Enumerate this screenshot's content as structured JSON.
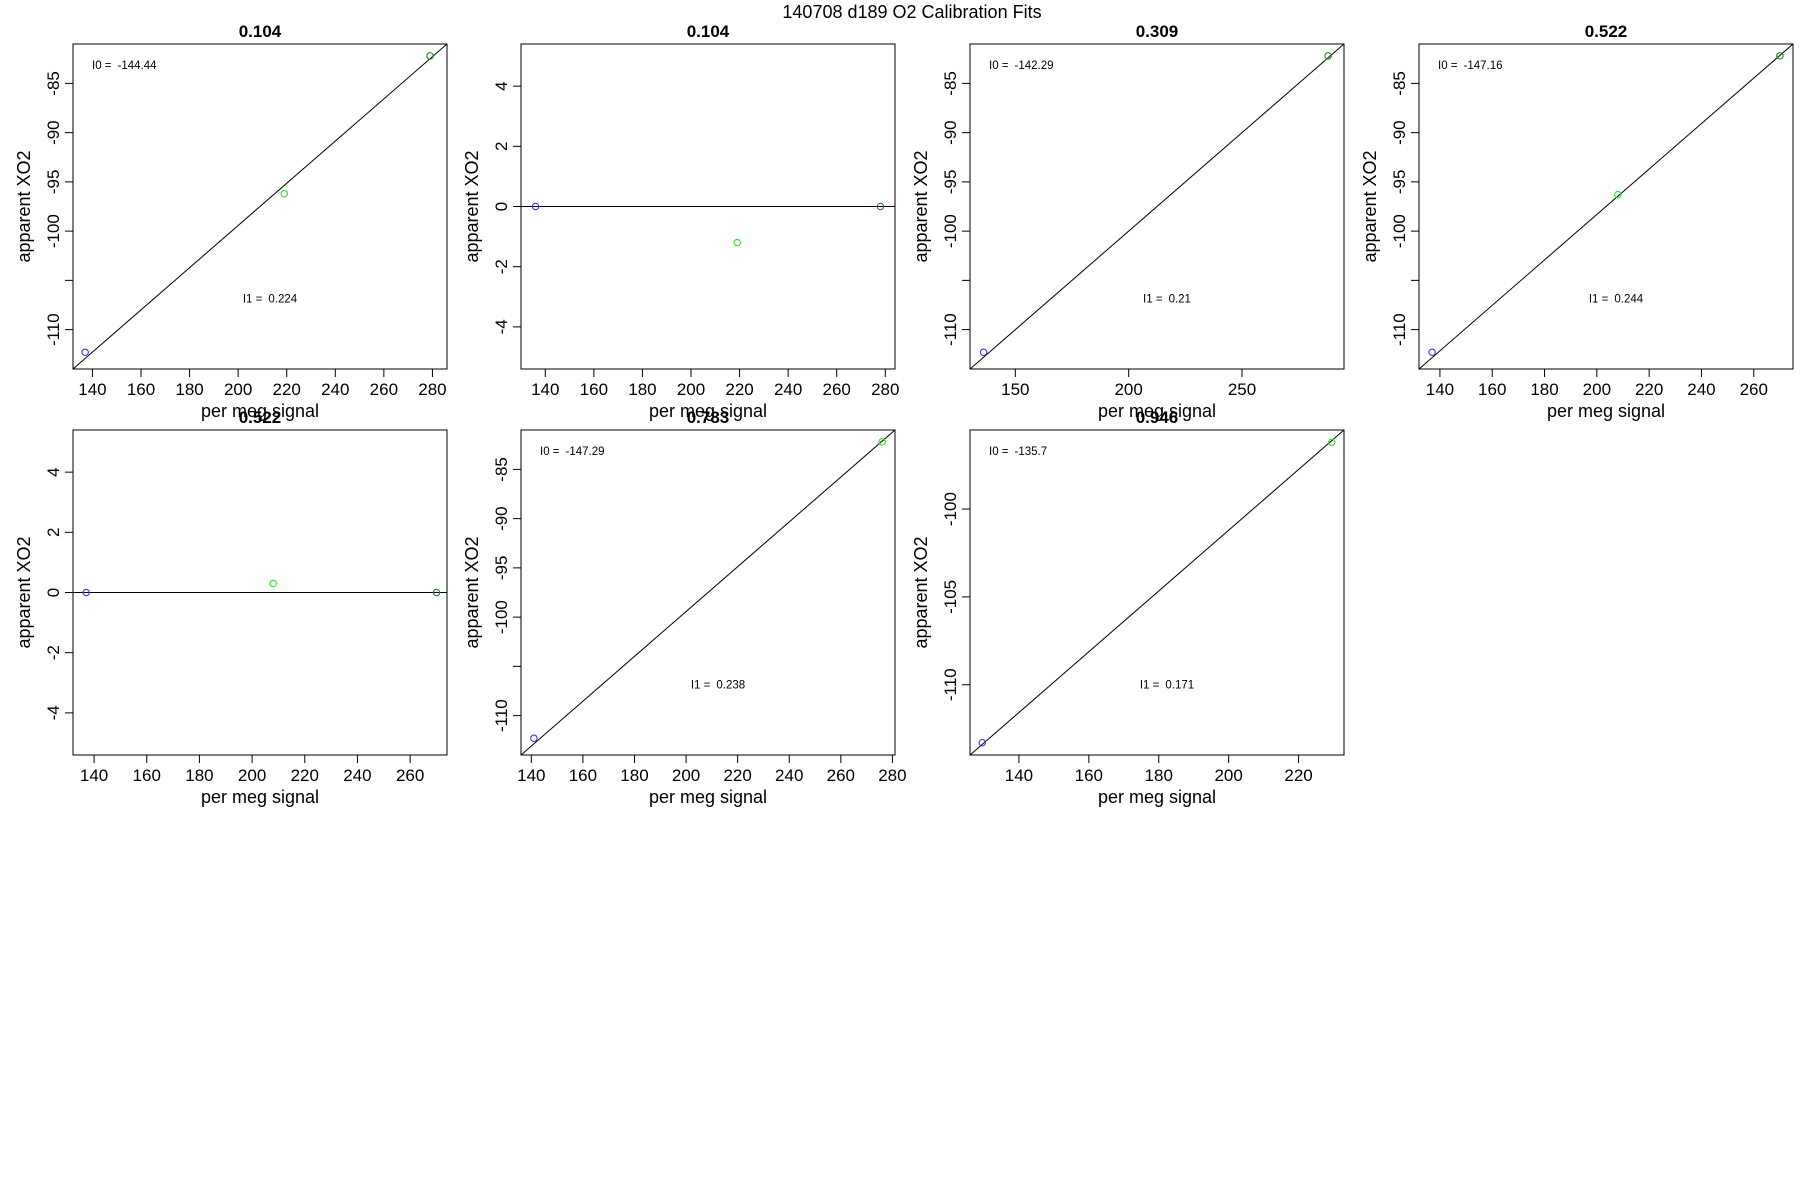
{
  "figure": {
    "title": "140708   d189   O2 Calibration Fits",
    "colors": {
      "low_point": "#3a3ae8",
      "mid_point": "#33dd33",
      "high_point": "#1e8a1e",
      "line": "#000000",
      "frame": "#000000"
    }
  },
  "chart_data": [
    {
      "type": "scatter",
      "title": "0.104",
      "xlabel": "per meg signal",
      "ylabel": "apparent XO2",
      "xlim": [
        132,
        286
      ],
      "ylim": [
        -114,
        -81
      ],
      "xticks": [
        140,
        160,
        180,
        200,
        220,
        240,
        260,
        280
      ],
      "xtick_labels": [
        "140",
        "160",
        "180",
        "200",
        "220",
        "240",
        "260",
        "280"
      ],
      "yticks": [
        -110,
        -105,
        -100,
        -95,
        -90,
        -85
      ],
      "ytick_labels": [
        "-110",
        "",
        "-100",
        "-95",
        "-90",
        "-85"
      ],
      "points": [
        {
          "x": 137,
          "y": -112.3,
          "role": "low"
        },
        {
          "x": 219,
          "y": -96.2,
          "role": "mid"
        },
        {
          "x": 279,
          "y": -82.2,
          "role": "high"
        }
      ],
      "fit_line": [
        [
          132,
          -114
        ],
        [
          286,
          -81
        ]
      ],
      "annotations": [
        {
          "label": "I0 =",
          "value": "-144.44",
          "pos": "top-left"
        },
        {
          "label": "I1 =",
          "value": "0.224",
          "pos": "center"
        }
      ]
    },
    {
      "type": "scatter",
      "title": "0.104",
      "xlabel": "per meg signal",
      "ylabel": "apparent XO2",
      "xlim": [
        130,
        284
      ],
      "ylim": [
        -5.4,
        5.4
      ],
      "xticks": [
        140,
        160,
        180,
        200,
        220,
        240,
        260,
        280
      ],
      "xtick_labels": [
        "140",
        "160",
        "180",
        "200",
        "220",
        "240",
        "260",
        "280"
      ],
      "yticks": [
        -4,
        -2,
        0,
        2,
        4
      ],
      "ytick_labels": [
        "-4",
        "-2",
        "0",
        "2",
        "4"
      ],
      "points": [
        {
          "x": 136,
          "y": 0,
          "role": "low"
        },
        {
          "x": 219,
          "y": -1.2,
          "role": "mid"
        },
        {
          "x": 278,
          "y": 0,
          "role": "high"
        }
      ],
      "fit_line": [
        [
          130,
          0
        ],
        [
          284,
          0
        ]
      ],
      "annotations": []
    },
    {
      "type": "scatter",
      "title": "0.309",
      "xlabel": "per meg signal",
      "ylabel": "apparent XO2",
      "xlim": [
        130,
        295
      ],
      "ylim": [
        -114,
        -81
      ],
      "xticks": [
        150,
        200,
        250
      ],
      "xtick_labels": [
        "150",
        "200",
        "250"
      ],
      "yticks": [
        -110,
        -105,
        -100,
        -95,
        -90,
        -85
      ],
      "ytick_labels": [
        "-110",
        "",
        "-100",
        "-95",
        "-90",
        "-85"
      ],
      "points": [
        {
          "x": 136,
          "y": -112.3,
          "role": "low"
        },
        {
          "x": 288,
          "y": -82.2,
          "role": "high"
        }
      ],
      "fit_line": [
        [
          130,
          -114
        ],
        [
          295,
          -81
        ]
      ],
      "annotations": [
        {
          "label": "I0 =",
          "value": "-142.29",
          "pos": "top-left"
        },
        {
          "label": "I1 =",
          "value": "0.21",
          "pos": "center"
        }
      ]
    },
    {
      "type": "scatter",
      "title": "0.522",
      "xlabel": "per meg signal",
      "ylabel": "apparent XO2",
      "xlim": [
        132,
        275
      ],
      "ylim": [
        -114,
        -81
      ],
      "xticks": [
        140,
        160,
        180,
        200,
        220,
        240,
        260
      ],
      "xtick_labels": [
        "140",
        "160",
        "180",
        "200",
        "220",
        "240",
        "260"
      ],
      "yticks": [
        -110,
        -105,
        -100,
        -95,
        -90,
        -85
      ],
      "ytick_labels": [
        "-110",
        "",
        "-100",
        "-95",
        "-90",
        "-85"
      ],
      "points": [
        {
          "x": 137,
          "y": -112.3,
          "role": "low"
        },
        {
          "x": 208,
          "y": -96.3,
          "role": "mid"
        },
        {
          "x": 270,
          "y": -82.2,
          "role": "high"
        }
      ],
      "fit_line": [
        [
          132,
          -114
        ],
        [
          275,
          -81
        ]
      ],
      "annotations": [
        {
          "label": "I0 =",
          "value": "-147.16",
          "pos": "top-left"
        },
        {
          "label": "I1 =",
          "value": "0.244",
          "pos": "center"
        }
      ]
    },
    {
      "type": "scatter",
      "title": "0.522",
      "xlabel": "per meg signal",
      "ylabel": "apparent XO2",
      "xlim": [
        132,
        274
      ],
      "ylim": [
        -5.4,
        5.4
      ],
      "xticks": [
        140,
        160,
        180,
        200,
        220,
        240,
        260
      ],
      "xtick_labels": [
        "140",
        "160",
        "180",
        "200",
        "220",
        "240",
        "260"
      ],
      "yticks": [
        -4,
        -2,
        0,
        2,
        4
      ],
      "ytick_labels": [
        "-4",
        "-2",
        "0",
        "2",
        "4"
      ],
      "points": [
        {
          "x": 137,
          "y": 0,
          "role": "low"
        },
        {
          "x": 208,
          "y": 0.3,
          "role": "mid"
        },
        {
          "x": 270,
          "y": 0,
          "role": "high"
        }
      ],
      "fit_line": [
        [
          132,
          0
        ],
        [
          274,
          0
        ]
      ],
      "annotations": []
    },
    {
      "type": "scatter",
      "title": "0.783",
      "xlabel": "per meg signal",
      "ylabel": "apparent XO2",
      "xlim": [
        136,
        281
      ],
      "ylim": [
        -114,
        -81
      ],
      "xticks": [
        140,
        160,
        180,
        200,
        220,
        240,
        260,
        280
      ],
      "xtick_labels": [
        "140",
        "160",
        "180",
        "200",
        "220",
        "240",
        "260",
        "280"
      ],
      "yticks": [
        -110,
        -105,
        -100,
        -95,
        -90,
        -85
      ],
      "ytick_labels": [
        "-110",
        "",
        "-100",
        "-95",
        "-90",
        "-85"
      ],
      "points": [
        {
          "x": 141,
          "y": -112.3,
          "role": "low"
        },
        {
          "x": 276,
          "y": -82.2,
          "role": "mid"
        }
      ],
      "fit_line": [
        [
          136,
          -114
        ],
        [
          281,
          -81
        ]
      ],
      "annotations": [
        {
          "label": "I0 =",
          "value": "-147.29",
          "pos": "top-left"
        },
        {
          "label": "I1 =",
          "value": "0.238",
          "pos": "center"
        }
      ]
    },
    {
      "type": "scatter",
      "title": "0.946",
      "xlabel": "per meg signal",
      "ylabel": "apparent XO2",
      "xlim": [
        126,
        233
      ],
      "ylim": [
        -114,
        -95.5
      ],
      "xticks": [
        140,
        160,
        180,
        200,
        220
      ],
      "xtick_labels": [
        "140",
        "160",
        "180",
        "200",
        "220"
      ],
      "yticks": [
        -110,
        -105,
        -100
      ],
      "ytick_labels": [
        "-110",
        "-105",
        "-100"
      ],
      "points": [
        {
          "x": 129.5,
          "y": -113.3,
          "role": "low"
        },
        {
          "x": 229.5,
          "y": -96.2,
          "role": "mid"
        }
      ],
      "fit_line": [
        [
          126,
          -114
        ],
        [
          233,
          -95.5
        ]
      ],
      "annotations": [
        {
          "label": "I0 =",
          "value": "-135.7",
          "pos": "top-left"
        },
        {
          "label": "I1 =",
          "value": "0.171",
          "pos": "center"
        }
      ]
    }
  ]
}
